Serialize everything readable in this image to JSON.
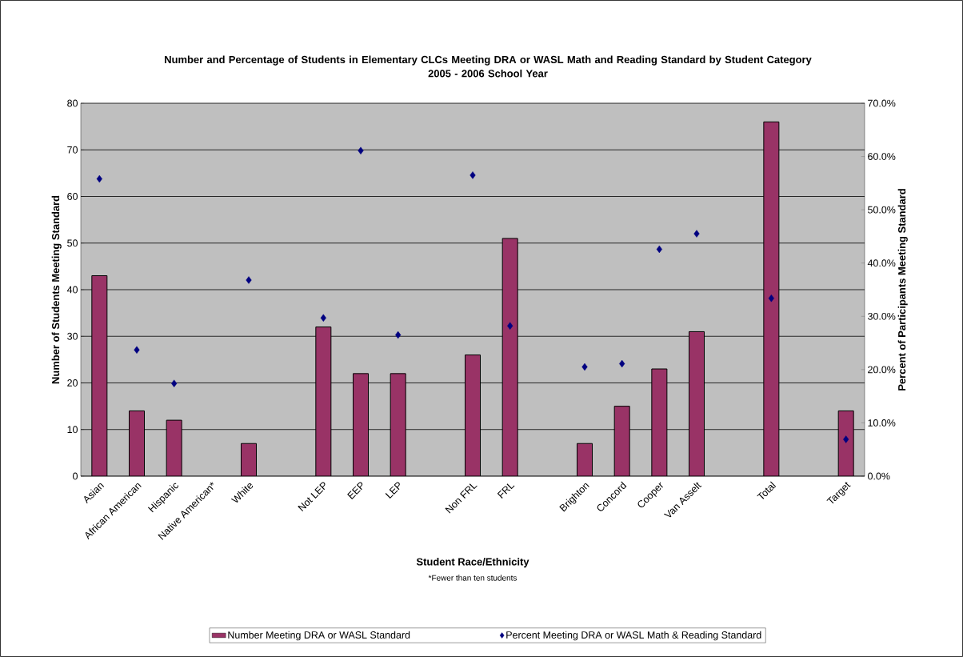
{
  "chart_data": {
    "type": "bar",
    "title": "Number and Percentage of Students in Elementary CLCs Meeting DRA or WASL Math and Reading Standard by Student Category",
    "subtitle": "2005 - 2006 School Year",
    "xlabel": "Student Race/Ethnicity",
    "ylabel": "Number of Students Meeting Standard",
    "y2label": "Percent of Participants Meeting Standard",
    "annotations": [
      "*Fewer than ten students"
    ],
    "categories": [
      "Asian",
      "African American",
      "Hispanic",
      "Native American*",
      "White",
      null,
      "Not LEP",
      "EEP",
      "LEP",
      null,
      "Non FRL",
      "FRL",
      null,
      "Brighton",
      "Concord",
      "Cooper",
      "Van Asselt",
      null,
      "Total",
      null,
      "Target"
    ],
    "series": [
      {
        "name": "Number Meeting DRA or WASL Standard",
        "color": "#993366",
        "values": [
          43,
          14,
          12,
          null,
          7,
          null,
          32,
          22,
          22,
          null,
          26,
          51,
          null,
          7,
          15,
          23,
          31,
          null,
          76,
          null,
          14
        ]
      },
      {
        "name": "Percent Meeting DRA or WASL Math & Reading Standard",
        "type": "scatter",
        "axis": "y2",
        "marker": "diamond",
        "color": "#000080",
        "values": [
          55.8,
          23.7,
          17.4,
          null,
          36.8,
          null,
          29.7,
          61.1,
          26.5,
          null,
          56.5,
          28.2,
          null,
          20.5,
          21.1,
          42.6,
          45.5,
          null,
          33.4,
          null,
          6.9
        ]
      }
    ],
    "ylim": [
      0,
      80
    ],
    "yticks": [
      0,
      10,
      20,
      30,
      40,
      50,
      60,
      70,
      80
    ],
    "y2lim": [
      0,
      70
    ],
    "y2ticks": [
      {
        "value": 0,
        "label": "0.0%"
      },
      {
        "value": 10,
        "label": "10.0%"
      },
      {
        "value": 20,
        "label": "20.0%"
      },
      {
        "value": 30,
        "label": "30.0%"
      },
      {
        "value": 40,
        "label": "40.0%"
      },
      {
        "value": 50,
        "label": "50.0%"
      },
      {
        "value": 60,
        "label": "60.0%"
      },
      {
        "value": 70,
        "label": "70.0%"
      }
    ],
    "grid": "y",
    "legend": "bottom"
  }
}
